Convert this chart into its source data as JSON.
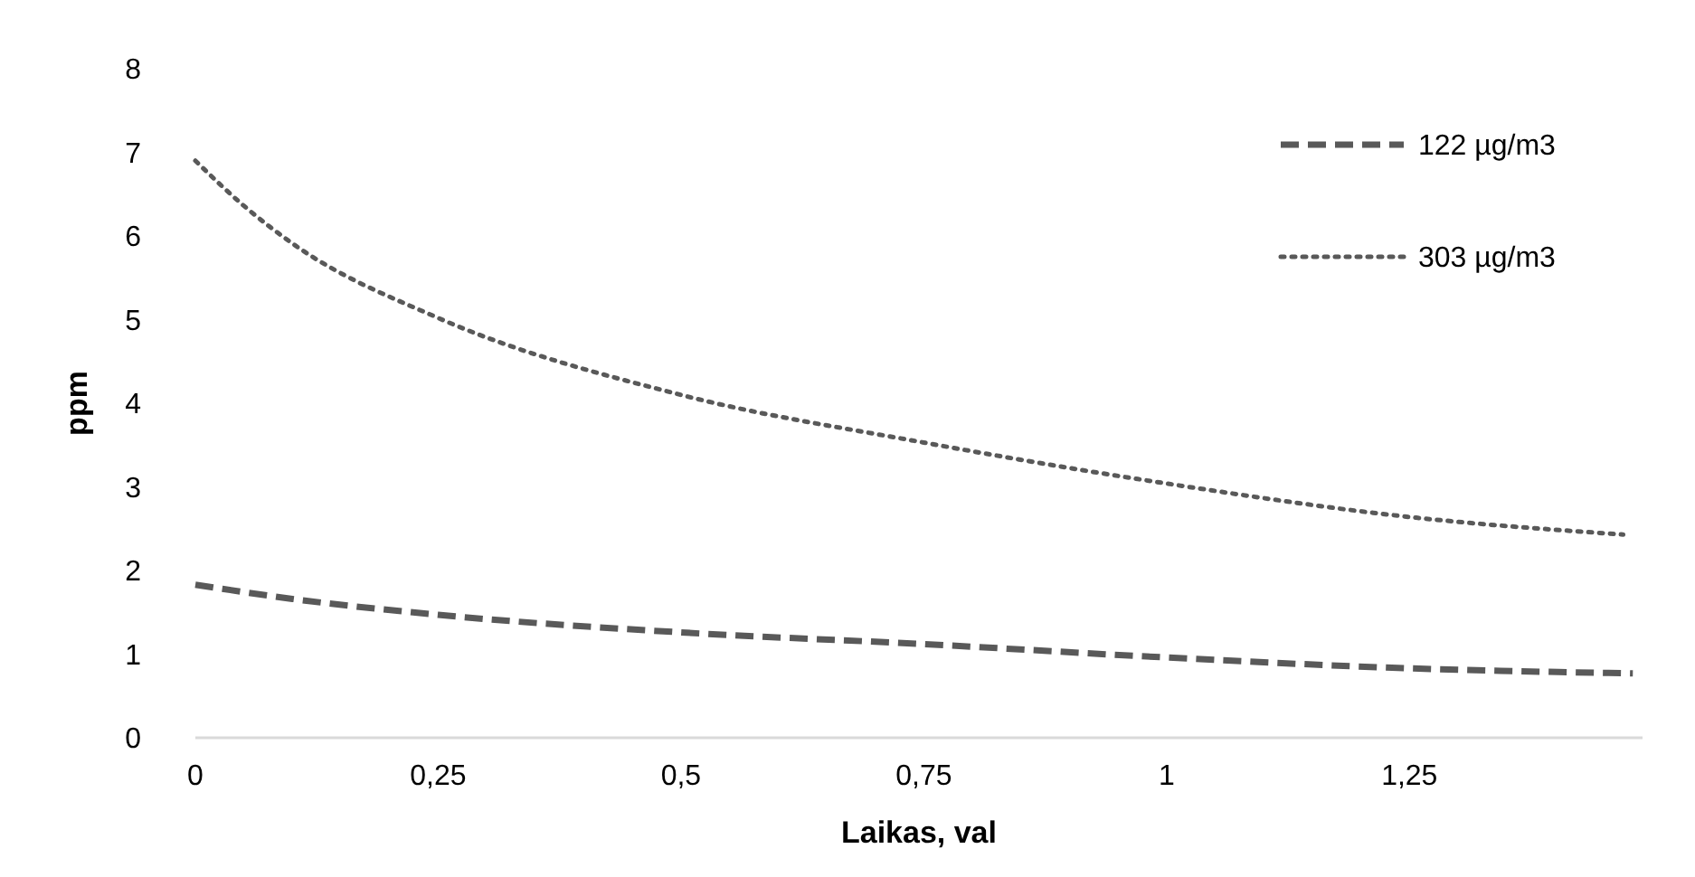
{
  "chart_data": {
    "type": "line",
    "xlabel": "Laikas, val",
    "ylabel": "ppm",
    "xlim": [
      0,
      1.49
    ],
    "xticks": [
      0,
      {
        "value": 0.25,
        "label": "0,25"
      },
      {
        "value": 0.5,
        "label": "0,5"
      },
      {
        "value": 0.75,
        "label": "0,75"
      },
      1,
      {
        "value": 1.25,
        "label": "1,25"
      }
    ],
    "ylim": [
      0,
      8
    ],
    "yticks": [
      0,
      1,
      2,
      3,
      4,
      5,
      6,
      7,
      8
    ],
    "grid": false,
    "legend": "top right",
    "marker": "none",
    "series": [
      {
        "name": "122 µg/m3",
        "color": "#595959",
        "line_style": "dashed",
        "x": [
          0,
          0.1,
          0.25,
          0.5,
          0.75,
          1,
          1.25,
          1.48
        ],
        "values": [
          1.83,
          1.66,
          1.47,
          1.26,
          1.12,
          0.96,
          0.83,
          0.77
        ]
      },
      {
        "name": "303 µg/m3",
        "color": "#595959",
        "line_style": "dotted",
        "x": [
          0,
          0.05,
          0.1,
          0.25,
          0.5,
          0.75,
          1,
          1.25,
          1.47
        ],
        "values": [
          6.9,
          6.36,
          5.91,
          5.02,
          4.1,
          3.53,
          3.04,
          2.64,
          2.43
        ]
      }
    ]
  }
}
